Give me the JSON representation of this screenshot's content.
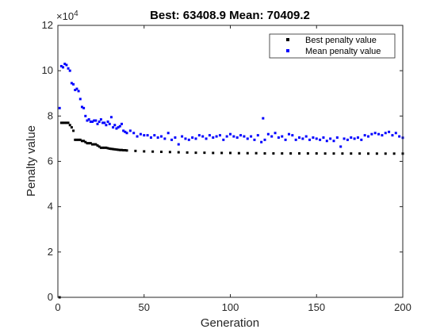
{
  "chart_data": {
    "type": "scatter",
    "title": "Best: 63408.9 Mean: 70409.2",
    "xlabel": "Generation",
    "ylabel": "Penalty value",
    "xlim": [
      0,
      200
    ],
    "ylim": [
      0,
      120000
    ],
    "y_exponent_label": "×10",
    "y_exponent_power": "4",
    "xticks": [
      0,
      50,
      100,
      150,
      200
    ],
    "yticks": [
      0,
      20000,
      40000,
      60000,
      80000,
      100000,
      120000
    ],
    "ytick_labels": [
      "0",
      "2",
      "4",
      "6",
      "8",
      "10",
      "12"
    ],
    "grid": false,
    "legend_position": "top-right",
    "colors": {
      "best": "#000000",
      "mean": "#0000ff",
      "axis": "#262626"
    },
    "series": [
      {
        "name": "Best penalty value",
        "color": "#000000",
        "points": [
          [
            1,
            0
          ],
          [
            2,
            77000
          ],
          [
            3,
            77000
          ],
          [
            4,
            77000
          ],
          [
            5,
            77000
          ],
          [
            6,
            77000
          ],
          [
            7,
            76000
          ],
          [
            8,
            75000
          ],
          [
            9,
            73500
          ],
          [
            10,
            69500
          ],
          [
            11,
            69500
          ],
          [
            12,
            69500
          ],
          [
            13,
            69500
          ],
          [
            14,
            69000
          ],
          [
            15,
            69000
          ],
          [
            16,
            68500
          ],
          [
            17,
            68000
          ],
          [
            18,
            68000
          ],
          [
            19,
            68000
          ],
          [
            20,
            67500
          ],
          [
            21,
            67500
          ],
          [
            22,
            67500
          ],
          [
            23,
            67000
          ],
          [
            24,
            66500
          ],
          [
            25,
            66000
          ],
          [
            26,
            66000
          ],
          [
            27,
            66000
          ],
          [
            28,
            66000
          ],
          [
            29,
            65800
          ],
          [
            30,
            65600
          ],
          [
            31,
            65500
          ],
          [
            32,
            65400
          ],
          [
            33,
            65300
          ],
          [
            34,
            65200
          ],
          [
            35,
            65100
          ],
          [
            36,
            65000
          ],
          [
            37,
            65000
          ],
          [
            38,
            64900
          ],
          [
            39,
            64900
          ],
          [
            40,
            64800
          ],
          [
            45,
            64600
          ],
          [
            50,
            64400
          ],
          [
            55,
            64300
          ],
          [
            60,
            64200
          ],
          [
            65,
            64100
          ],
          [
            70,
            64000
          ],
          [
            75,
            63900
          ],
          [
            80,
            63800
          ],
          [
            85,
            63800
          ],
          [
            90,
            63700
          ],
          [
            95,
            63700
          ],
          [
            100,
            63700
          ],
          [
            105,
            63600
          ],
          [
            110,
            63600
          ],
          [
            115,
            63600
          ],
          [
            120,
            63500
          ],
          [
            125,
            63500
          ],
          [
            130,
            63500
          ],
          [
            135,
            63500
          ],
          [
            140,
            63500
          ],
          [
            145,
            63500
          ],
          [
            150,
            63500
          ],
          [
            155,
            63450
          ],
          [
            160,
            63450
          ],
          [
            165,
            63450
          ],
          [
            170,
            63450
          ],
          [
            175,
            63450
          ],
          [
            180,
            63420
          ],
          [
            185,
            63420
          ],
          [
            190,
            63410
          ],
          [
            195,
            63410
          ],
          [
            200,
            63408.9
          ]
        ]
      },
      {
        "name": "Mean penalty value",
        "color": "#0000ff",
        "points": [
          [
            1,
            83500
          ],
          [
            2,
            102000
          ],
          [
            3,
            101500
          ],
          [
            4,
            103000
          ],
          [
            5,
            102500
          ],
          [
            6,
            101000
          ],
          [
            7,
            100000
          ],
          [
            8,
            94500
          ],
          [
            9,
            94000
          ],
          [
            10,
            91500
          ],
          [
            11,
            92000
          ],
          [
            12,
            91000
          ],
          [
            13,
            87500
          ],
          [
            14,
            84000
          ],
          [
            15,
            83500
          ],
          [
            16,
            80000
          ],
          [
            17,
            78000
          ],
          [
            18,
            78500
          ],
          [
            19,
            77500
          ],
          [
            20,
            77500
          ],
          [
            21,
            78000
          ],
          [
            22,
            78000
          ],
          [
            23,
            76500
          ],
          [
            24,
            77500
          ],
          [
            25,
            78500
          ],
          [
            26,
            77000
          ],
          [
            27,
            77000
          ],
          [
            28,
            76000
          ],
          [
            29,
            77500
          ],
          [
            30,
            76500
          ],
          [
            31,
            79500
          ],
          [
            32,
            75000
          ],
          [
            33,
            76000
          ],
          [
            34,
            74500
          ],
          [
            35,
            75000
          ],
          [
            36,
            75500
          ],
          [
            37,
            76500
          ],
          [
            38,
            73500
          ],
          [
            39,
            73000
          ],
          [
            40,
            72500
          ],
          [
            42,
            73500
          ],
          [
            44,
            72500
          ],
          [
            46,
            71000
          ],
          [
            48,
            72000
          ],
          [
            50,
            71500
          ],
          [
            52,
            71500
          ],
          [
            54,
            70500
          ],
          [
            56,
            71500
          ],
          [
            58,
            70500
          ],
          [
            60,
            71000
          ],
          [
            62,
            70000
          ],
          [
            64,
            72500
          ],
          [
            66,
            69500
          ],
          [
            68,
            70500
          ],
          [
            70,
            67500
          ],
          [
            72,
            71000
          ],
          [
            74,
            70000
          ],
          [
            76,
            69500
          ],
          [
            78,
            70500
          ],
          [
            80,
            70000
          ],
          [
            82,
            71500
          ],
          [
            84,
            71000
          ],
          [
            86,
            70000
          ],
          [
            88,
            71500
          ],
          [
            90,
            70500
          ],
          [
            92,
            71000
          ],
          [
            94,
            71500
          ],
          [
            96,
            69500
          ],
          [
            98,
            71000
          ],
          [
            100,
            72000
          ],
          [
            102,
            71000
          ],
          [
            104,
            70500
          ],
          [
            106,
            71500
          ],
          [
            108,
            71000
          ],
          [
            110,
            70000
          ],
          [
            112,
            71000
          ],
          [
            114,
            69500
          ],
          [
            116,
            71500
          ],
          [
            118,
            68500
          ],
          [
            119,
            79000
          ],
          [
            120,
            69500
          ],
          [
            122,
            72000
          ],
          [
            124,
            71000
          ],
          [
            126,
            72500
          ],
          [
            128,
            70500
          ],
          [
            130,
            71000
          ],
          [
            132,
            69500
          ],
          [
            134,
            72000
          ],
          [
            136,
            71500
          ],
          [
            138,
            69500
          ],
          [
            140,
            70500
          ],
          [
            142,
            70000
          ],
          [
            144,
            71000
          ],
          [
            146,
            69500
          ],
          [
            148,
            70500
          ],
          [
            150,
            70000
          ],
          [
            152,
            69500
          ],
          [
            154,
            70500
          ],
          [
            156,
            69000
          ],
          [
            158,
            70000
          ],
          [
            160,
            69000
          ],
          [
            162,
            70500
          ],
          [
            164,
            66500
          ],
          [
            166,
            70000
          ],
          [
            168,
            69500
          ],
          [
            170,
            70500
          ],
          [
            172,
            70000
          ],
          [
            174,
            70500
          ],
          [
            176,
            69500
          ],
          [
            178,
            71500
          ],
          [
            180,
            71000
          ],
          [
            182,
            72000
          ],
          [
            184,
            72500
          ],
          [
            186,
            72000
          ],
          [
            188,
            71500
          ],
          [
            190,
            72500
          ],
          [
            192,
            73000
          ],
          [
            194,
            71500
          ],
          [
            196,
            72500
          ],
          [
            198,
            71000
          ],
          [
            200,
            70409.2
          ]
        ]
      }
    ]
  }
}
